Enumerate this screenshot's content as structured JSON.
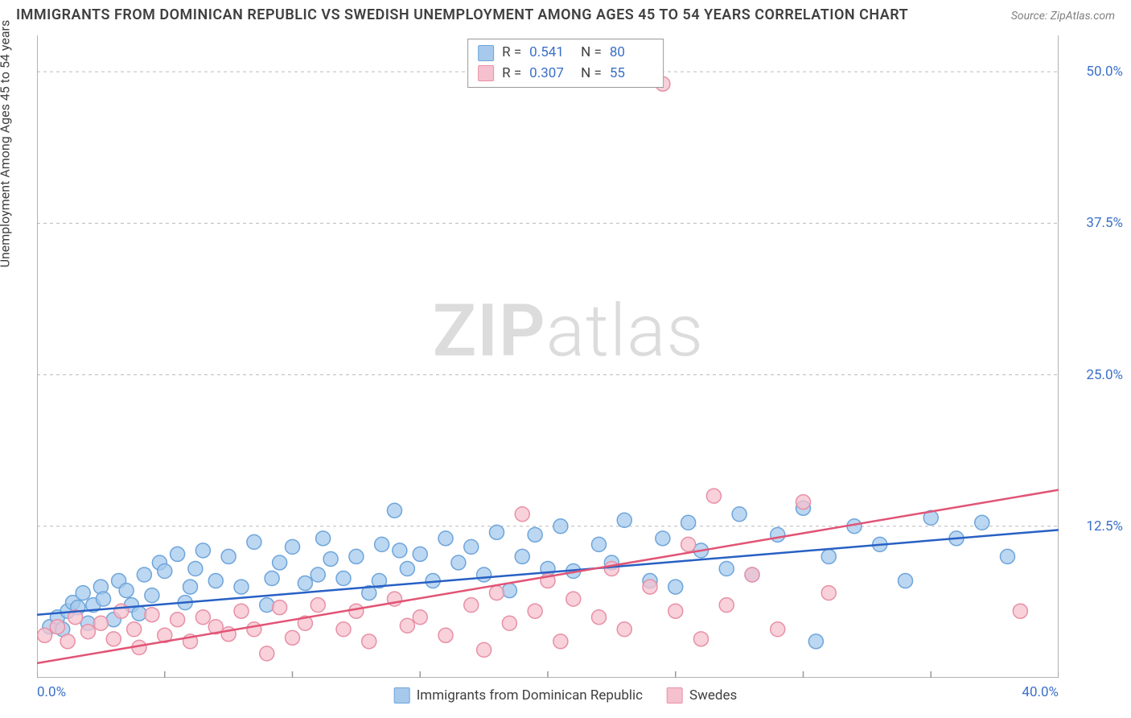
{
  "title": "IMMIGRANTS FROM DOMINICAN REPUBLIC VS SWEDISH UNEMPLOYMENT AMONG AGES 45 TO 54 YEARS CORRELATION CHART",
  "source_label": "Source: ZipAtlas.com",
  "y_axis_label": "Unemployment Among Ages 45 to 54 years",
  "watermark_bold": "ZIP",
  "watermark_thin": "atlas",
  "chart": {
    "type": "scatter",
    "xlim": [
      0,
      40
    ],
    "ylim": [
      0,
      53
    ],
    "x_ticks": [
      0,
      5,
      10,
      15,
      20,
      25,
      30,
      35,
      40
    ],
    "x_tick_labels": {
      "0": "0.0%",
      "40": "40.0%"
    },
    "y_gridlines": [
      12.5,
      25.0,
      37.5,
      50.0
    ],
    "y_tick_labels": [
      "12.5%",
      "25.0%",
      "37.5%",
      "50.0%"
    ],
    "background_color": "#ffffff",
    "grid_color": "#bbbbbb",
    "axis_color": "#999999",
    "tick_label_color": "#3b6fc9",
    "series": [
      {
        "name": "Immigrants from Dominican Republic",
        "r_label": "R =",
        "r_value": "0.541",
        "n_label": "N =",
        "n_value": "80",
        "marker_fill": "#a6c9ec",
        "marker_stroke": "#6ea5db",
        "marker_opacity": 0.75,
        "marker_radius": 9,
        "regression": {
          "x1": 0,
          "y1": 5.2,
          "x2": 40,
          "y2": 12.2,
          "color": "#2860c4",
          "width": 2.5
        },
        "points": [
          [
            0.5,
            4.2
          ],
          [
            0.8,
            5.0
          ],
          [
            1.0,
            4.0
          ],
          [
            1.2,
            5.5
          ],
          [
            1.4,
            6.2
          ],
          [
            1.6,
            5.8
          ],
          [
            1.8,
            7.0
          ],
          [
            2.0,
            4.5
          ],
          [
            2.2,
            6.0
          ],
          [
            2.5,
            7.5
          ],
          [
            2.6,
            6.5
          ],
          [
            3.0,
            4.8
          ],
          [
            3.2,
            8.0
          ],
          [
            3.5,
            7.2
          ],
          [
            3.7,
            6.0
          ],
          [
            4.0,
            5.3
          ],
          [
            4.2,
            8.5
          ],
          [
            4.5,
            6.8
          ],
          [
            4.8,
            9.5
          ],
          [
            5.0,
            8.8
          ],
          [
            5.5,
            10.2
          ],
          [
            5.8,
            6.2
          ],
          [
            6.0,
            7.5
          ],
          [
            6.2,
            9.0
          ],
          [
            6.5,
            10.5
          ],
          [
            7.0,
            8.0
          ],
          [
            7.5,
            10.0
          ],
          [
            8.0,
            7.5
          ],
          [
            8.5,
            11.2
          ],
          [
            9.0,
            6.0
          ],
          [
            9.2,
            8.2
          ],
          [
            9.5,
            9.5
          ],
          [
            10.0,
            10.8
          ],
          [
            10.5,
            7.8
          ],
          [
            11.0,
            8.5
          ],
          [
            11.2,
            11.5
          ],
          [
            11.5,
            9.8
          ],
          [
            12.0,
            8.2
          ],
          [
            12.5,
            10.0
          ],
          [
            13.0,
            7.0
          ],
          [
            13.4,
            8.0
          ],
          [
            13.5,
            11.0
          ],
          [
            14.0,
            13.8
          ],
          [
            14.2,
            10.5
          ],
          [
            14.5,
            9.0
          ],
          [
            15.0,
            10.2
          ],
          [
            15.5,
            8.0
          ],
          [
            16.0,
            11.5
          ],
          [
            16.5,
            9.5
          ],
          [
            17.0,
            10.8
          ],
          [
            17.5,
            8.5
          ],
          [
            18.0,
            12.0
          ],
          [
            18.5,
            7.2
          ],
          [
            19.0,
            10.0
          ],
          [
            19.5,
            11.8
          ],
          [
            20.0,
            9.0
          ],
          [
            20.5,
            12.5
          ],
          [
            21.0,
            8.8
          ],
          [
            22.0,
            11.0
          ],
          [
            22.5,
            9.5
          ],
          [
            23.0,
            13.0
          ],
          [
            24.0,
            8.0
          ],
          [
            24.5,
            11.5
          ],
          [
            25.0,
            7.5
          ],
          [
            25.5,
            12.8
          ],
          [
            26.0,
            10.5
          ],
          [
            27.0,
            9.0
          ],
          [
            27.5,
            13.5
          ],
          [
            28.0,
            8.5
          ],
          [
            29.0,
            11.8
          ],
          [
            30.0,
            14.0
          ],
          [
            30.5,
            3.0
          ],
          [
            31.0,
            10.0
          ],
          [
            32.0,
            12.5
          ],
          [
            33.0,
            11.0
          ],
          [
            34.0,
            8.0
          ],
          [
            35.0,
            13.2
          ],
          [
            36.0,
            11.5
          ],
          [
            37.0,
            12.8
          ],
          [
            38.0,
            10.0
          ]
        ]
      },
      {
        "name": "Swedes",
        "r_label": "R =",
        "r_value": "0.307",
        "n_label": "N =",
        "n_value": "55",
        "marker_fill": "#f5c1ce",
        "marker_stroke": "#e890a6",
        "marker_opacity": 0.75,
        "marker_radius": 9,
        "regression": {
          "x1": 0,
          "y1": 1.2,
          "x2": 40,
          "y2": 15.5,
          "color": "#e15475",
          "width": 2.5
        },
        "points": [
          [
            0.3,
            3.5
          ],
          [
            0.8,
            4.2
          ],
          [
            1.2,
            3.0
          ],
          [
            1.5,
            5.0
          ],
          [
            2.0,
            3.8
          ],
          [
            2.5,
            4.5
          ],
          [
            3.0,
            3.2
          ],
          [
            3.3,
            5.5
          ],
          [
            3.8,
            4.0
          ],
          [
            4.0,
            2.5
          ],
          [
            4.5,
            5.2
          ],
          [
            5.0,
            3.5
          ],
          [
            5.5,
            4.8
          ],
          [
            6.0,
            3.0
          ],
          [
            6.5,
            5.0
          ],
          [
            7.0,
            4.2
          ],
          [
            7.5,
            3.6
          ],
          [
            8.0,
            5.5
          ],
          [
            8.5,
            4.0
          ],
          [
            9.0,
            2.0
          ],
          [
            9.5,
            5.8
          ],
          [
            10.0,
            3.3
          ],
          [
            10.5,
            4.5
          ],
          [
            11.0,
            6.0
          ],
          [
            12.0,
            4.0
          ],
          [
            12.5,
            5.5
          ],
          [
            13.0,
            3.0
          ],
          [
            14.0,
            6.5
          ],
          [
            14.5,
            4.3
          ],
          [
            15.0,
            5.0
          ],
          [
            16.0,
            3.5
          ],
          [
            17.0,
            6.0
          ],
          [
            17.5,
            2.3
          ],
          [
            18.0,
            7.0
          ],
          [
            18.5,
            4.5
          ],
          [
            19.0,
            13.5
          ],
          [
            19.5,
            5.5
          ],
          [
            20.0,
            8.0
          ],
          [
            20.5,
            3.0
          ],
          [
            21.0,
            6.5
          ],
          [
            22.0,
            5.0
          ],
          [
            22.5,
            9.0
          ],
          [
            23.0,
            4.0
          ],
          [
            24.0,
            7.5
          ],
          [
            24.5,
            49.0
          ],
          [
            25.0,
            5.5
          ],
          [
            25.5,
            11.0
          ],
          [
            26.0,
            3.2
          ],
          [
            26.5,
            15.0
          ],
          [
            27.0,
            6.0
          ],
          [
            28.0,
            8.5
          ],
          [
            29.0,
            4.0
          ],
          [
            30.0,
            14.5
          ],
          [
            31.0,
            7.0
          ],
          [
            38.5,
            5.5
          ]
        ]
      }
    ]
  },
  "bottom_legend": [
    {
      "label": "Immigrants from Dominican Republic",
      "fill": "#a6c9ec",
      "stroke": "#6ea5db"
    },
    {
      "label": "Swedes",
      "fill": "#f5c1ce",
      "stroke": "#e890a6"
    }
  ]
}
